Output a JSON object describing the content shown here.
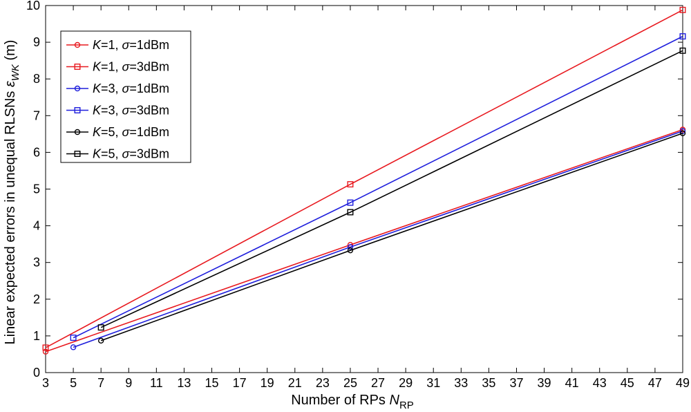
{
  "chart_data": {
    "type": "line",
    "xlabel": "Number of RPs",
    "xlabel_sym": "N",
    "xlabel_sub": "RP",
    "ylabel": "Linear expected errors in unequal RLSNs",
    "ylabel_sym": "ε",
    "ylabel_sub": "WK",
    "ylabel_unit": "(m)",
    "xlim": [
      3,
      49
    ],
    "ylim": [
      0,
      10
    ],
    "xticks": [
      "3",
      "5",
      "7",
      "9",
      "11",
      "13",
      "15",
      "17",
      "19",
      "21",
      "23",
      "25",
      "27",
      "29",
      "31",
      "33",
      "35",
      "37",
      "39",
      "41",
      "43",
      "45",
      "47",
      "49"
    ],
    "yticks": [
      "0",
      "1",
      "2",
      "3",
      "4",
      "5",
      "6",
      "7",
      "8",
      "9",
      "10"
    ],
    "grid": false,
    "legend_position": "top-left",
    "series": [
      {
        "name": "K=1, σ=1dBm",
        "k": "K",
        "kval": "=1, ",
        "s": "σ",
        "sval": "=1dBm",
        "color": "#e8191f",
        "marker": "circle",
        "x": [
          3,
          25,
          49
        ],
        "y": [
          0.57,
          3.48,
          6.62
        ]
      },
      {
        "name": "K=1, σ=3dBm",
        "k": "K",
        "kval": "=1, ",
        "s": "σ",
        "sval": "=3dBm",
        "color": "#e8191f",
        "marker": "square",
        "x": [
          3,
          25,
          49
        ],
        "y": [
          0.68,
          5.13,
          9.88
        ]
      },
      {
        "name": "K=3, σ=1dBm",
        "k": "K",
        "kval": "=3, ",
        "s": "σ",
        "sval": "=1dBm",
        "color": "#1e1edc",
        "marker": "circle",
        "x": [
          5,
          25,
          49
        ],
        "y": [
          0.69,
          3.42,
          6.58
        ]
      },
      {
        "name": "K=3, σ=3dBm",
        "k": "K",
        "kval": "=3, ",
        "s": "σ",
        "sval": "=3dBm",
        "color": "#1e1edc",
        "marker": "square",
        "x": [
          5,
          25,
          49
        ],
        "y": [
          0.95,
          4.63,
          9.16
        ]
      },
      {
        "name": "K=5, σ=1dBm",
        "k": "K",
        "kval": "=5, ",
        "s": "σ",
        "sval": "=1dBm",
        "color": "#000000",
        "marker": "circle",
        "x": [
          7,
          25,
          49
        ],
        "y": [
          0.87,
          3.33,
          6.52
        ]
      },
      {
        "name": "K=5, σ=3dBm",
        "k": "K",
        "kval": "=5, ",
        "s": "σ",
        "sval": "=3dBm",
        "color": "#000000",
        "marker": "square",
        "x": [
          7,
          25,
          49
        ],
        "y": [
          1.23,
          4.37,
          8.77
        ]
      }
    ]
  }
}
